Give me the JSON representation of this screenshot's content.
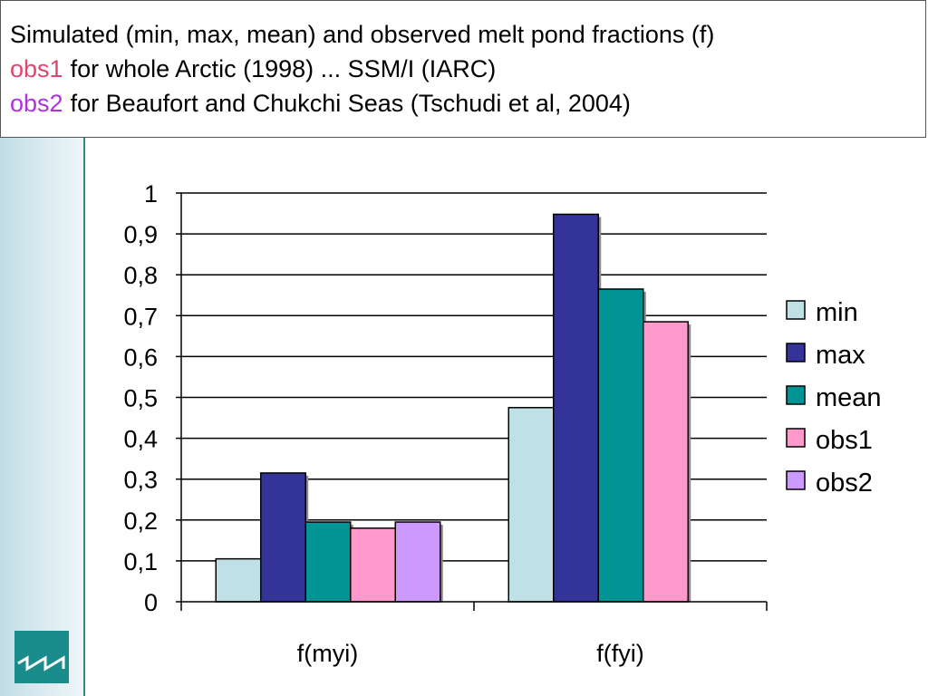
{
  "title": {
    "line1": "Simulated (min, max, mean) and observed melt pond fractions (f)",
    "line2_keyword": "obs1",
    "line2_rest": "for whole Arctic (1998) ... SSM/I (IARC)",
    "line3_keyword": "obs2",
    "line3_rest": "for Beaufort and Chukchi Seas (Tschudi et al, 2004)",
    "obs1_color": "#e0456e",
    "obs2_color": "#b030e0"
  },
  "chart_data": {
    "type": "bar",
    "categories": [
      "f(myi)",
      "f(fyi)"
    ],
    "series": [
      {
        "name": "min",
        "values": [
          0.105,
          0.475
        ],
        "color": "#bfe0e4"
      },
      {
        "name": "max",
        "values": [
          0.315,
          0.948
        ],
        "color": "#333399"
      },
      {
        "name": "mean",
        "values": [
          0.195,
          0.765
        ],
        "color": "#009494"
      },
      {
        "name": "obs1",
        "values": [
          0.18,
          0.685
        ],
        "color": "#ff99cc"
      },
      {
        "name": "obs2",
        "values": [
          0.195,
          null
        ],
        "color": "#cc99ff"
      }
    ],
    "yticks": [
      "0",
      "0,1",
      "0,2",
      "0,3",
      "0,4",
      "0,5",
      "0,6",
      "0,7",
      "0,8",
      "0,9",
      "1"
    ],
    "ylim": [
      0,
      1
    ],
    "grid": true,
    "legend_position": "right",
    "xlabel": "",
    "ylabel": ""
  }
}
